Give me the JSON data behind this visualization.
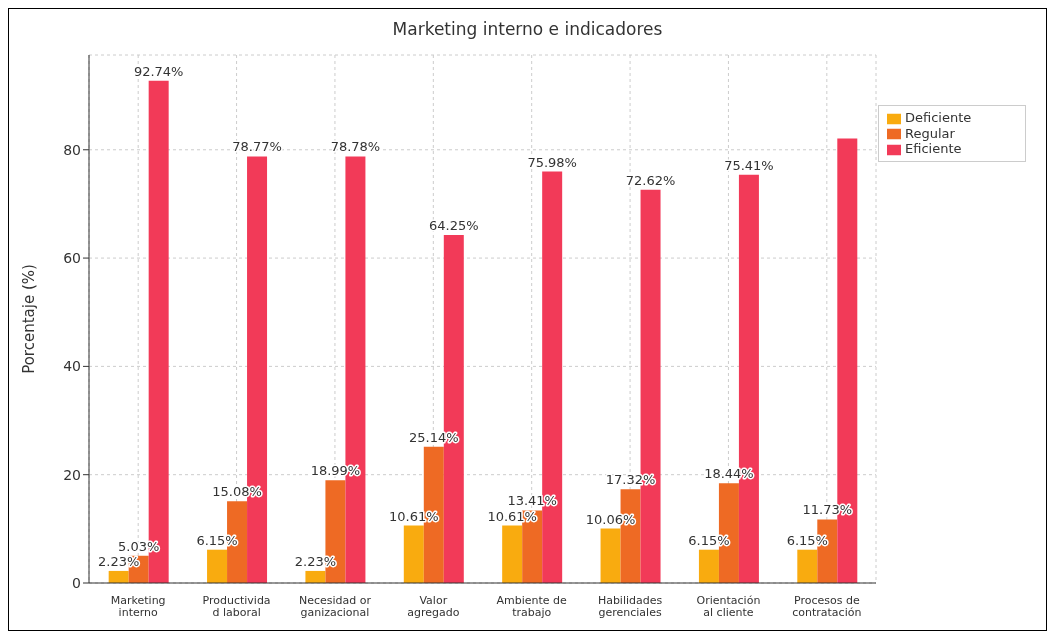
{
  "chart_data": {
    "type": "bar",
    "title": "Marketing interno e indicadores",
    "ylabel": "Porcentaje (%)",
    "categories": [
      "Marketing\ninterno",
      "Productivida\nd laboral",
      "Necesidad or\nganizacional",
      "Valor\nagregado",
      "Ambiente de\ntrabajo",
      "Habilidades\ngerenciales",
      "Orientación\nal cliente",
      "Procesos de\ncontratación"
    ],
    "series": [
      {
        "name": "Deficiente",
        "color": "#f9ab0f",
        "values": [
          2.23,
          6.15,
          2.23,
          10.61,
          10.61,
          10.06,
          6.15,
          6.15
        ],
        "value_labels": [
          "2.23%",
          "6.15%",
          "2.23%",
          "10.61%",
          "10.61%",
          "10.06%",
          "6.15%",
          "6.15%"
        ]
      },
      {
        "name": "Regular",
        "color": "#ee6a24",
        "values": [
          5.03,
          15.08,
          18.99,
          25.14,
          13.41,
          17.32,
          18.44,
          11.73
        ],
        "value_labels": [
          "5.03%",
          "15.08%",
          "18.99%",
          "25.14%",
          "13.41%",
          "17.32%",
          "18.44%",
          "11.73%"
        ]
      },
      {
        "name": "Eficiente",
        "color": "#f23a58",
        "values": [
          92.74,
          78.77,
          78.78,
          64.25,
          75.98,
          72.62,
          75.41,
          82.1
        ],
        "value_labels": [
          "92.74%",
          "78.77%",
          "78.78%",
          "64.25%",
          "75.98%",
          "72.62%",
          "75.41%",
          null
        ]
      }
    ],
    "ylim": [
      0,
      97.5
    ],
    "yticks": [
      0,
      20,
      40,
      60,
      80
    ],
    "grid": true,
    "legend": "top right"
  }
}
